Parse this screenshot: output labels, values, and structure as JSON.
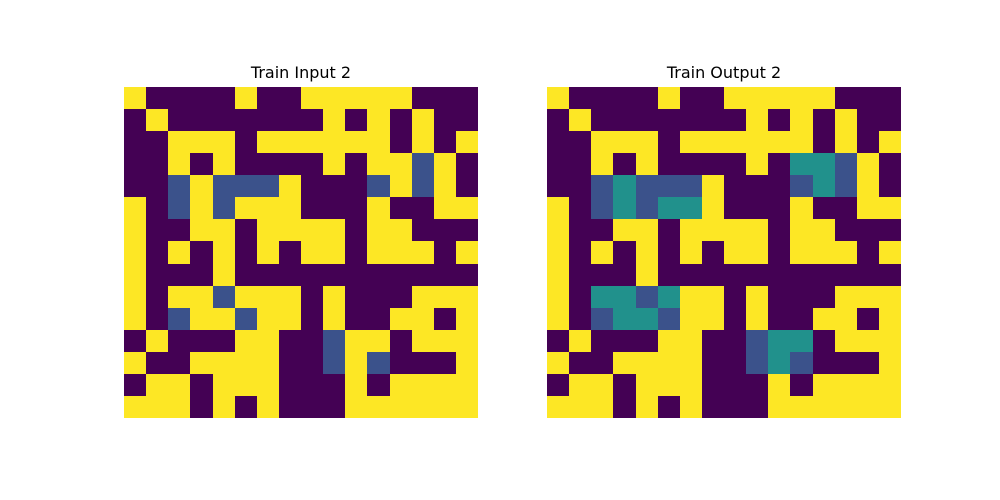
{
  "palette": {
    "0": "#440154",
    "1": "#3b528b",
    "2": "#21918c",
    "4": "#fde725"
  },
  "panels": [
    {
      "title": "Train Input 2",
      "grid": [
        [
          4,
          0,
          0,
          0,
          0,
          4,
          0,
          0,
          4,
          4,
          4,
          4,
          4,
          0,
          0,
          0
        ],
        [
          0,
          4,
          0,
          0,
          0,
          0,
          0,
          0,
          0,
          4,
          0,
          4,
          0,
          4,
          0,
          0
        ],
        [
          0,
          0,
          4,
          4,
          4,
          0,
          4,
          4,
          4,
          4,
          4,
          4,
          0,
          4,
          0,
          4
        ],
        [
          0,
          0,
          4,
          0,
          4,
          0,
          0,
          0,
          0,
          4,
          0,
          4,
          4,
          1,
          4,
          0
        ],
        [
          0,
          0,
          1,
          4,
          1,
          1,
          1,
          4,
          0,
          0,
          0,
          1,
          4,
          1,
          4,
          0
        ],
        [
          4,
          0,
          1,
          4,
          1,
          4,
          4,
          4,
          0,
          0,
          0,
          4,
          0,
          0,
          4,
          4
        ],
        [
          4,
          0,
          0,
          4,
          4,
          0,
          4,
          4,
          4,
          4,
          0,
          4,
          4,
          0,
          0,
          0
        ],
        [
          4,
          0,
          4,
          0,
          4,
          0,
          4,
          0,
          4,
          4,
          0,
          4,
          4,
          4,
          0,
          4
        ],
        [
          4,
          0,
          0,
          0,
          4,
          0,
          0,
          0,
          0,
          0,
          0,
          0,
          0,
          0,
          0,
          0
        ],
        [
          4,
          0,
          4,
          4,
          1,
          4,
          4,
          4,
          0,
          4,
          0,
          0,
          0,
          4,
          4,
          4
        ],
        [
          4,
          0,
          1,
          4,
          4,
          1,
          4,
          4,
          0,
          4,
          0,
          0,
          4,
          4,
          0,
          4
        ],
        [
          0,
          4,
          0,
          0,
          0,
          4,
          4,
          0,
          0,
          1,
          4,
          4,
          0,
          4,
          4,
          4
        ],
        [
          4,
          0,
          0,
          4,
          4,
          4,
          4,
          0,
          0,
          1,
          4,
          1,
          0,
          0,
          0,
          4
        ],
        [
          0,
          4,
          4,
          0,
          4,
          4,
          4,
          0,
          0,
          0,
          4,
          0,
          4,
          4,
          4,
          4
        ],
        [
          4,
          4,
          4,
          0,
          4,
          0,
          4,
          0,
          0,
          0,
          4,
          4,
          4,
          4,
          4,
          4
        ]
      ]
    },
    {
      "title": "Train Output 2",
      "grid": [
        [
          4,
          0,
          0,
          0,
          0,
          4,
          0,
          0,
          4,
          4,
          4,
          4,
          4,
          0,
          0,
          0
        ],
        [
          0,
          4,
          0,
          0,
          0,
          0,
          0,
          0,
          0,
          4,
          0,
          4,
          0,
          4,
          0,
          0
        ],
        [
          0,
          0,
          4,
          4,
          4,
          0,
          4,
          4,
          4,
          4,
          4,
          4,
          0,
          4,
          0,
          4
        ],
        [
          0,
          0,
          4,
          0,
          4,
          0,
          0,
          0,
          0,
          4,
          0,
          2,
          2,
          1,
          4,
          0
        ],
        [
          0,
          0,
          1,
          2,
          1,
          1,
          1,
          4,
          0,
          0,
          0,
          1,
          2,
          1,
          4,
          0
        ],
        [
          4,
          0,
          1,
          2,
          1,
          2,
          2,
          4,
          0,
          0,
          0,
          4,
          0,
          0,
          4,
          4
        ],
        [
          4,
          0,
          0,
          4,
          4,
          0,
          4,
          4,
          4,
          4,
          0,
          4,
          4,
          0,
          0,
          0
        ],
        [
          4,
          0,
          4,
          0,
          4,
          0,
          4,
          0,
          4,
          4,
          0,
          4,
          4,
          4,
          0,
          4
        ],
        [
          4,
          0,
          0,
          0,
          4,
          0,
          0,
          0,
          0,
          0,
          0,
          0,
          0,
          0,
          0,
          0
        ],
        [
          4,
          0,
          2,
          2,
          1,
          2,
          4,
          4,
          0,
          4,
          0,
          0,
          0,
          4,
          4,
          4
        ],
        [
          4,
          0,
          1,
          2,
          2,
          1,
          4,
          4,
          0,
          4,
          0,
          0,
          4,
          4,
          0,
          4
        ],
        [
          0,
          4,
          0,
          0,
          0,
          4,
          4,
          0,
          0,
          1,
          2,
          2,
          0,
          4,
          4,
          4
        ],
        [
          4,
          0,
          0,
          4,
          4,
          4,
          4,
          0,
          0,
          1,
          2,
          1,
          0,
          0,
          0,
          4
        ],
        [
          0,
          4,
          4,
          0,
          4,
          4,
          4,
          0,
          0,
          0,
          4,
          0,
          4,
          4,
          4,
          4
        ],
        [
          4,
          4,
          4,
          0,
          4,
          0,
          4,
          0,
          0,
          0,
          4,
          4,
          4,
          4,
          4,
          4
        ]
      ]
    }
  ]
}
